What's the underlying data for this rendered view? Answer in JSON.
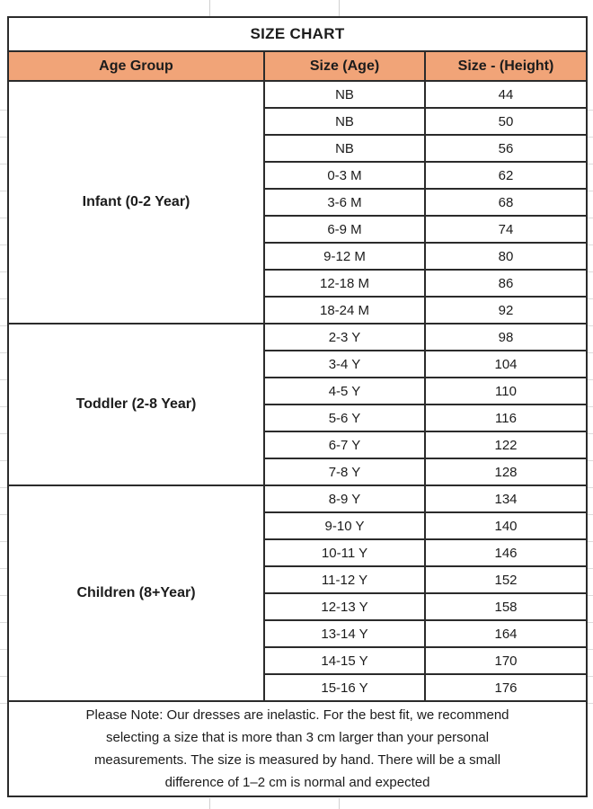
{
  "title": "SIZE CHART",
  "columns": {
    "age_group": "Age Group",
    "size_age": "Size (Age)",
    "size_height": "Size - (Height)"
  },
  "groups": [
    {
      "label": "Infant (0-2 Year)",
      "rows": [
        [
          "NB",
          "44"
        ],
        [
          "NB",
          "50"
        ],
        [
          "NB",
          "56"
        ],
        [
          "0-3 M",
          "62"
        ],
        [
          "3-6 M",
          "68"
        ],
        [
          "6-9 M",
          "74"
        ],
        [
          "9-12 M",
          "80"
        ],
        [
          "12-18 M",
          "86"
        ],
        [
          "18-24 M",
          "92"
        ]
      ]
    },
    {
      "label": "Toddler (2-8 Year)",
      "rows": [
        [
          "2-3 Y",
          "98"
        ],
        [
          "3-4 Y",
          "104"
        ],
        [
          "4-5 Y",
          "110"
        ],
        [
          "5-6 Y",
          "116"
        ],
        [
          "6-7 Y",
          "122"
        ],
        [
          "7-8 Y",
          "128"
        ]
      ]
    },
    {
      "label": "Children (8+Year)",
      "rows": [
        [
          "8-9 Y",
          "134"
        ],
        [
          "9-10 Y",
          "140"
        ],
        [
          "10-11 Y",
          "146"
        ],
        [
          "11-12 Y",
          "152"
        ],
        [
          "12-13 Y",
          "158"
        ],
        [
          "13-14 Y",
          "164"
        ],
        [
          "14-15 Y",
          "170"
        ],
        [
          "15-16 Y",
          "176"
        ]
      ]
    }
  ],
  "note_lines": [
    "Please Note: Our dresses are inelastic. For the best fit, we recommend",
    "selecting a size that is more than 3 cm larger than your personal",
    "measurements. The size is measured by hand. There will be a small",
    "difference of 1–2 cm is normal and expected"
  ],
  "colors": {
    "header_bg": "#F1A478",
    "border": "#2b2b2b",
    "text": "#1c1c1c"
  },
  "chart_data": {
    "type": "table",
    "title": "SIZE CHART",
    "columns": [
      "Age Group",
      "Size (Age)",
      "Size - (Height)"
    ],
    "rows": [
      [
        "Infant (0-2 Year)",
        "NB",
        44
      ],
      [
        "Infant (0-2 Year)",
        "NB",
        50
      ],
      [
        "Infant (0-2 Year)",
        "NB",
        56
      ],
      [
        "Infant (0-2 Year)",
        "0-3 M",
        62
      ],
      [
        "Infant (0-2 Year)",
        "3-6 M",
        68
      ],
      [
        "Infant (0-2 Year)",
        "6-9 M",
        74
      ],
      [
        "Infant (0-2 Year)",
        "9-12 M",
        80
      ],
      [
        "Infant (0-2 Year)",
        "12-18 M",
        86
      ],
      [
        "Infant (0-2 Year)",
        "18-24 M",
        92
      ],
      [
        "Toddler (2-8 Year)",
        "2-3 Y",
        98
      ],
      [
        "Toddler (2-8 Year)",
        "3-4 Y",
        104
      ],
      [
        "Toddler (2-8 Year)",
        "4-5 Y",
        110
      ],
      [
        "Toddler (2-8 Year)",
        "5-6 Y",
        116
      ],
      [
        "Toddler (2-8 Year)",
        "6-7 Y",
        122
      ],
      [
        "Toddler (2-8 Year)",
        "7-8 Y",
        128
      ],
      [
        "Children (8+Year)",
        "8-9 Y",
        134
      ],
      [
        "Children (8+Year)",
        "9-10 Y",
        140
      ],
      [
        "Children (8+Year)",
        "10-11 Y",
        146
      ],
      [
        "Children (8+Year)",
        "11-12 Y",
        152
      ],
      [
        "Children (8+Year)",
        "12-13 Y",
        158
      ],
      [
        "Children (8+Year)",
        "13-14 Y",
        164
      ],
      [
        "Children (8+Year)",
        "14-15 Y",
        170
      ],
      [
        "Children (8+Year)",
        "15-16 Y",
        176
      ]
    ],
    "note": "Please Note: Our dresses are inelastic. For the best fit, we recommend selecting a size that is more than 3 cm larger than your personal measurements. The size is measured by hand. There will be a small difference of 1–2 cm is normal and expected"
  }
}
